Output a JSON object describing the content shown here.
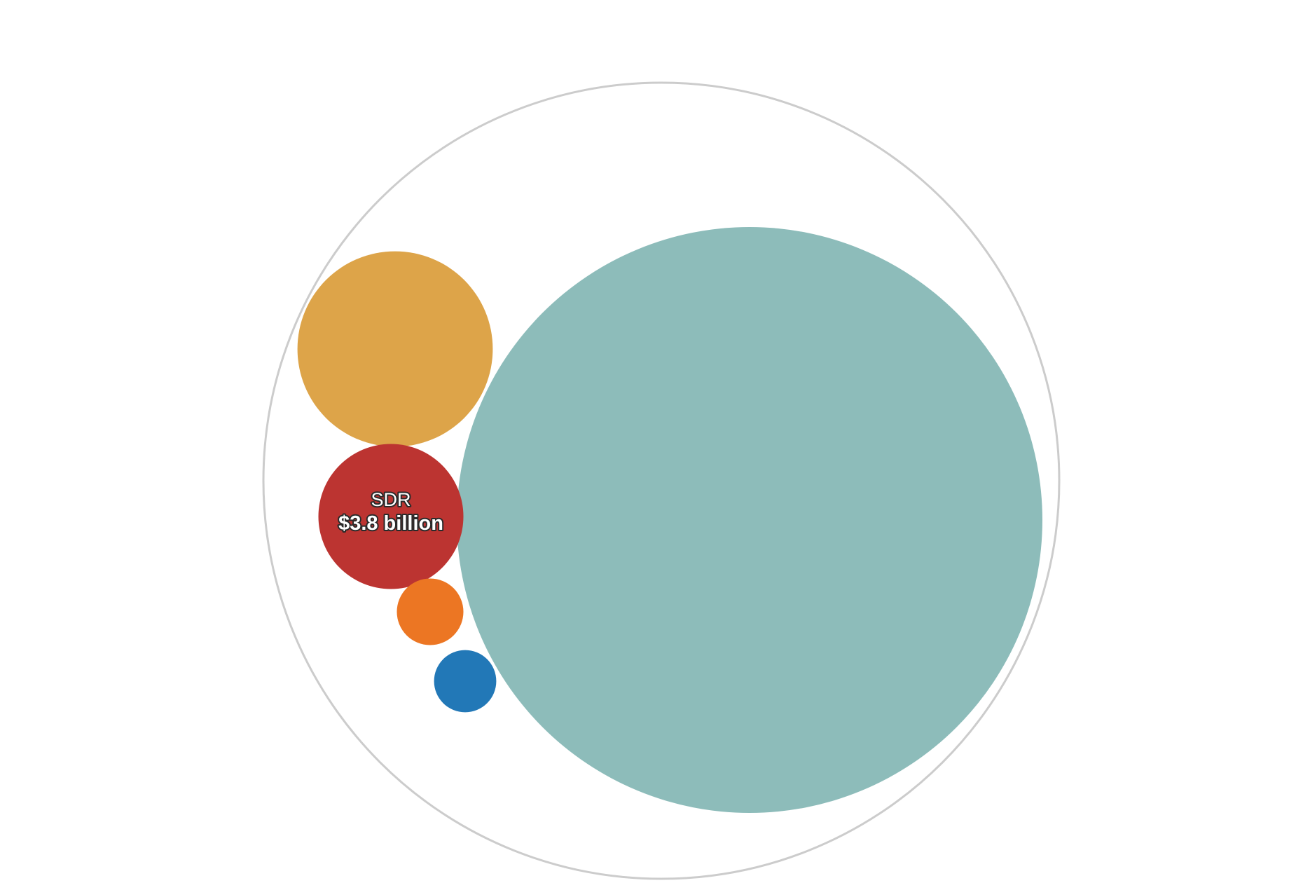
{
  "chart_data": {
    "type": "bubble",
    "value_unit": "billion USD",
    "bubbles": [
      {
        "value": 62.0,
        "color": "#8dbcba",
        "label": null,
        "value_label": null
      },
      {
        "value": 6.9,
        "color": "#dda449",
        "label": null,
        "value_label": null
      },
      {
        "value": 3.8,
        "color": "#bc3431",
        "label": "SDR",
        "value_label": "$3.8 billion"
      },
      {
        "value": 0.8,
        "color": "#ec7623",
        "label": null,
        "value_label": null
      },
      {
        "value": 0.7,
        "color": "#2278b7",
        "label": null,
        "value_label": null
      }
    ],
    "container": {
      "stroke": "#cccccc"
    }
  }
}
